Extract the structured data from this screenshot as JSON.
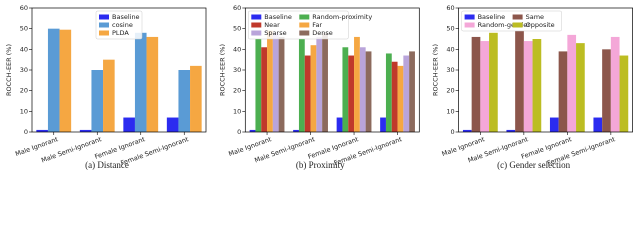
{
  "chart_data": [
    {
      "type": "bar",
      "caption": "(a)  Distance",
      "ylabel": "ROCCH-EER (%)",
      "categories": [
        "Male Ignorant",
        "Male Semi-Ignorant",
        "Female Ignorant",
        "Female Semi-Ignorant"
      ],
      "series": [
        {
          "name": "Baseline",
          "color": "#2b2bf0",
          "values": [
            1,
            1,
            7,
            7
          ]
        },
        {
          "name": "cosine",
          "color": "#5a9bd5",
          "values": [
            50,
            30,
            48,
            30
          ]
        },
        {
          "name": "PLDA",
          "color": "#f5a742",
          "values": [
            49.5,
            35,
            46,
            32
          ]
        }
      ],
      "ylim": [
        0,
        60
      ],
      "yticks": [
        0,
        10,
        20,
        30,
        40,
        50,
        60
      ],
      "legend": "upper center"
    },
    {
      "type": "bar",
      "caption": "(b)  Proximity",
      "ylabel": "ROCCH-EER (%)",
      "categories": [
        "Male Ignorant",
        "Male Semi-Ignorant",
        "Female Ignorant",
        "Female Semi-Ignorant"
      ],
      "series": [
        {
          "name": "Baseline",
          "color": "#2b2bf0",
          "values": [
            1,
            1,
            7,
            7
          ]
        },
        {
          "name": "Random-proximity",
          "color": "#4caf50",
          "values": [
            45,
            45,
            41,
            38
          ]
        },
        {
          "name": "Near",
          "color": "#c0392b",
          "values": [
            41,
            37,
            37,
            34
          ]
        },
        {
          "name": "Far",
          "color": "#f5a742",
          "values": [
            49,
            42,
            46,
            32
          ]
        },
        {
          "name": "Sparse",
          "color": "#b9a4da",
          "values": [
            48,
            46,
            41,
            37
          ]
        },
        {
          "name": "Dense",
          "color": "#8c6a5d",
          "values": [
            46,
            48,
            39,
            39
          ]
        }
      ],
      "ylim": [
        0,
        60
      ],
      "yticks": [
        0,
        10,
        20,
        30,
        40,
        50,
        60
      ],
      "legend": "upper left"
    },
    {
      "type": "bar",
      "caption": "(c)  Gender selection",
      "ylabel": "ROCCH-EER (%)",
      "categories": [
        "Male Ignorant",
        "Male Semi-Ignorant",
        "Female Ignorant",
        "Female Semi-Ignorant"
      ],
      "series": [
        {
          "name": "Baseline",
          "color": "#2b2bf0",
          "values": [
            1,
            1,
            7,
            7
          ]
        },
        {
          "name": "Same",
          "color": "#8c564b",
          "values": [
            46,
            49,
            39,
            40
          ]
        },
        {
          "name": "Random-gender",
          "color": "#f4a7d8",
          "values": [
            44,
            44,
            47,
            46
          ]
        },
        {
          "name": "Opposite",
          "color": "#bcbd22",
          "values": [
            48,
            45,
            43,
            37
          ]
        }
      ],
      "ylim": [
        0,
        60
      ],
      "yticks": [
        0,
        10,
        20,
        30,
        40,
        50,
        60
      ],
      "legend": "upper left"
    }
  ]
}
